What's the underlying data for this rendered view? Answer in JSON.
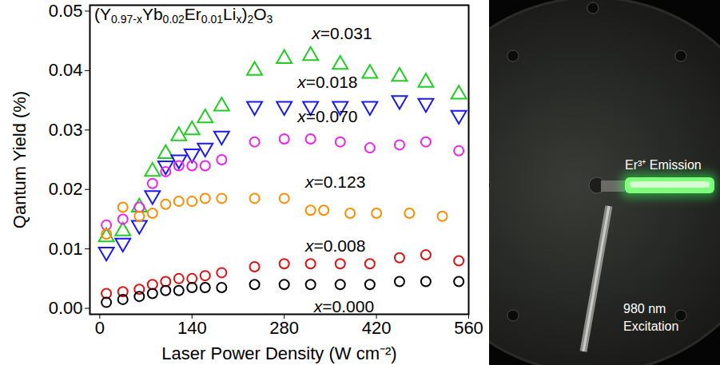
{
  "chart_data": {
    "type": "scatter",
    "title": "(Y0.97-xYb0.02Er0.01Lix)2O3",
    "x_label": "Laser Power Density (W cm⁻²)",
    "y_label": "Qantum Yield (%)",
    "xlim": [
      -15,
      560
    ],
    "ylim": [
      -0.001,
      0.051
    ],
    "xticks": [
      0,
      140,
      280,
      420,
      560
    ],
    "yticks": [
      {
        "value": 0,
        "label": "0.00"
      },
      0.01,
      0.02,
      0.03,
      0.04,
      0.05
    ],
    "grid": false,
    "series": [
      {
        "name": "x=0.031",
        "color": "#22cc22",
        "marker": "triangle",
        "x": [
          10,
          35,
          60,
          80,
          100,
          120,
          140,
          160,
          185,
          235,
          280,
          320,
          365,
          410,
          455,
          495,
          545
        ],
        "values": [
          0.012,
          0.013,
          0.017,
          0.023,
          0.026,
          0.029,
          0.03,
          0.032,
          0.034,
          0.04,
          0.042,
          0.0425,
          0.041,
          0.0395,
          0.039,
          0.038,
          0.036
        ]
      },
      {
        "name": "x=0.018",
        "color": "#1a1aee",
        "marker": "triangle-down",
        "x": [
          10,
          35,
          60,
          80,
          100,
          120,
          140,
          160,
          185,
          235,
          280,
          320,
          365,
          410,
          455,
          495,
          545
        ],
        "values": [
          0.0095,
          0.011,
          0.014,
          0.019,
          0.024,
          0.025,
          0.026,
          0.027,
          0.029,
          0.034,
          0.034,
          0.034,
          0.034,
          0.034,
          0.035,
          0.0345,
          0.0325
        ]
      },
      {
        "name": "x=0.070",
        "color": "#ee22ee",
        "marker": "circle",
        "x": [
          10,
          35,
          60,
          80,
          100,
          120,
          140,
          160,
          185,
          235,
          280,
          320,
          365,
          410,
          455,
          495,
          545
        ],
        "values": [
          0.014,
          0.015,
          0.017,
          0.021,
          0.023,
          0.024,
          0.024,
          0.024,
          0.025,
          0.028,
          0.0285,
          0.0285,
          0.028,
          0.027,
          0.0275,
          0.028,
          0.0265
        ]
      },
      {
        "name": "x=0.123",
        "color": "#ff8c00",
        "marker": "circle",
        "x": [
          10,
          35,
          60,
          80,
          100,
          120,
          140,
          160,
          185,
          235,
          280,
          320,
          340,
          380,
          420,
          470,
          520
        ],
        "values": [
          0.0125,
          0.017,
          0.0155,
          0.016,
          0.0175,
          0.018,
          0.018,
          0.0185,
          0.0185,
          0.0185,
          0.0185,
          0.0165,
          0.0165,
          0.016,
          0.016,
          0.016,
          0.0155
        ]
      },
      {
        "name": "x=0.008",
        "color": "#dd1111",
        "marker": "circle",
        "x": [
          10,
          35,
          60,
          80,
          100,
          120,
          140,
          160,
          185,
          235,
          280,
          320,
          365,
          410,
          455,
          495,
          545
        ],
        "values": [
          0.0025,
          0.0028,
          0.0032,
          0.004,
          0.0045,
          0.005,
          0.005,
          0.0055,
          0.006,
          0.007,
          0.0075,
          0.0075,
          0.0075,
          0.0075,
          0.0085,
          0.009,
          0.008
        ]
      },
      {
        "name": "x=0.000",
        "color": "#000000",
        "marker": "circle",
        "x": [
          10,
          35,
          60,
          80,
          100,
          120,
          140,
          160,
          185,
          235,
          280,
          320,
          365,
          410,
          455,
          495,
          545
        ],
        "values": [
          0.001,
          0.0015,
          0.002,
          0.0025,
          0.003,
          0.003,
          0.0035,
          0.0035,
          0.0035,
          0.004,
          0.004,
          0.004,
          0.004,
          0.004,
          0.0045,
          0.0045,
          0.0045
        ]
      }
    ]
  },
  "photo": {
    "annotations": [
      "Er³⁺ Emission",
      "980 nm Excitation"
    ]
  }
}
